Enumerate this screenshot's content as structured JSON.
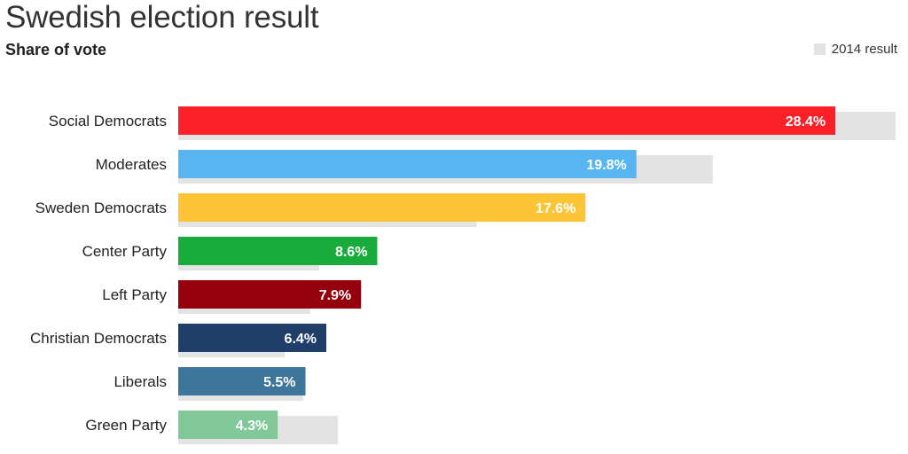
{
  "chart_data": {
    "type": "bar",
    "orientation": "horizontal",
    "title": "Swedish election result",
    "subtitle": "Share of vote",
    "legend": {
      "position": "top-right",
      "entries": [
        {
          "label": "2014 result",
          "color": "#e3e3e3"
        }
      ]
    },
    "xlim": [
      0,
      31
    ],
    "grid": false,
    "categories": [
      "Social Democrats",
      "Moderates",
      "Sweden Democrats",
      "Center Party",
      "Left Party",
      "Christian Democrats",
      "Liberals",
      "Green Party"
    ],
    "series": [
      {
        "values": [
          28.4,
          19.8,
          17.6,
          8.6,
          7.9,
          6.4,
          5.5,
          4.3
        ],
        "value_labels": [
          "28.4%",
          "19.8%",
          "17.6%",
          "8.6%",
          "7.9%",
          "6.4%",
          "5.5%",
          "4.3%"
        ],
        "colors": [
          "#fb1f28",
          "#58b5ef",
          "#fdc536",
          "#19ab3c",
          "#95000d",
          "#1f3e69",
          "#3e759a",
          "#81c898"
        ],
        "label_colors": [
          "#ffffff",
          "#ffffff",
          "#ffffff",
          "#ffffff",
          "#ffffff",
          "#ffffff",
          "#ffffff",
          "#ffffff"
        ]
      },
      {
        "name": "2014 result",
        "values": [
          31.0,
          23.1,
          12.9,
          6.1,
          5.7,
          4.6,
          5.4,
          6.9
        ],
        "color": "#e3e3e3"
      }
    ]
  }
}
